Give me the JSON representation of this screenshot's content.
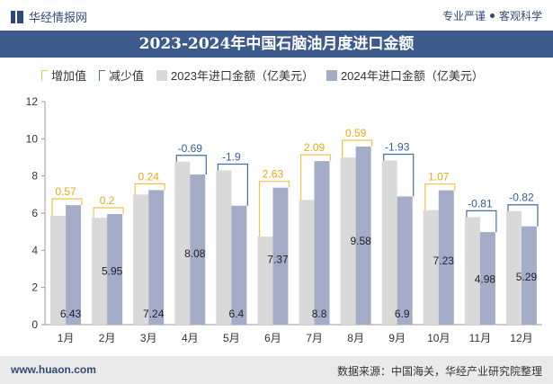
{
  "header": {
    "brand": "华经情报网",
    "slogan_left": "专业严谨",
    "slogan_right": "客观科学"
  },
  "footer": {
    "website": "www.huaon.com",
    "source": "数据来源：中国海关，华经产业研究院整理"
  },
  "colors": {
    "bar_2023": "#d9d9d9",
    "bar_2024": "#a3adc8",
    "increase": "#f5c242",
    "decrease": "#3f6ea0",
    "title_bar": "#3d5a8c"
  },
  "chart_data": {
    "type": "bar",
    "title": "2023-2024年中国石脑油月度进口金额",
    "legend_placement": "top-left",
    "legend": {
      "increase": "增加值",
      "decrease": "减少值",
      "s2023": "2023年进口金额（亿美元）",
      "s2024": "2024年进口金额（亿美元）"
    },
    "categories": [
      "1月",
      "2月",
      "3月",
      "4月",
      "5月",
      "6月",
      "7月",
      "8月",
      "9月",
      "10月",
      "11月",
      "12月"
    ],
    "ylim": [
      0,
      12
    ],
    "yticks": [
      0,
      2,
      4,
      6,
      8,
      10,
      12
    ],
    "grid": false,
    "series": [
      {
        "name": "2023年进口金额（亿美元）",
        "values": [
          5.86,
          5.75,
          7.0,
          8.77,
          8.3,
          4.74,
          6.71,
          8.99,
          8.83,
          6.16,
          5.79,
          6.11
        ]
      },
      {
        "name": "2024年进口金额（亿美元）",
        "values": [
          6.43,
          5.95,
          7.24,
          8.08,
          6.4,
          7.37,
          8.8,
          9.58,
          6.9,
          7.23,
          4.98,
          5.29
        ]
      }
    ],
    "changes": [
      "0.57",
      "0.2",
      "0.24",
      "-0.69",
      "-1.9",
      "2.63",
      "2.09",
      "0.59",
      "-1.93",
      "1.07",
      "-0.81",
      "-0.82"
    ],
    "value_labels_2024": [
      "6.43",
      "5.95",
      "7.24",
      "8.08",
      "6.4",
      "7.37",
      "8.8",
      "9.58",
      "6.9",
      "7.23",
      "4.98",
      "5.29"
    ]
  }
}
